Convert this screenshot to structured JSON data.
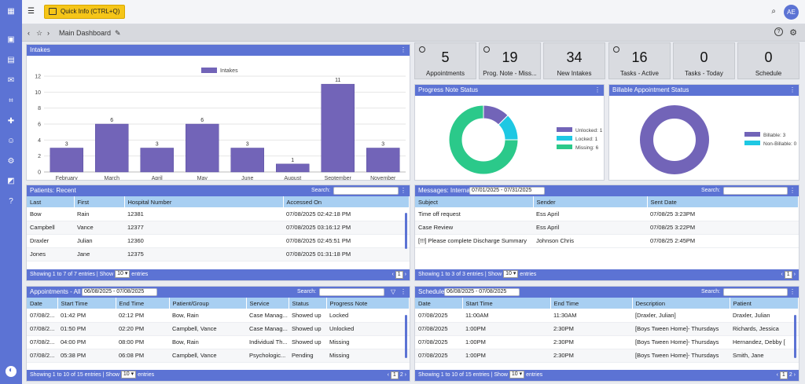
{
  "topbar": {
    "quick_info": "Quick Info (CTRL+Q)",
    "avatar": "AE"
  },
  "crumb": {
    "title": "Main Dashboard"
  },
  "intakes": {
    "title": "Intakes"
  },
  "chart_data": {
    "type": "bar",
    "title": "",
    "legend": "Intakes",
    "legend_position": "top-center",
    "categories": [
      "February",
      "March",
      "April",
      "May",
      "June",
      "August",
      "September",
      "November"
    ],
    "series": [
      {
        "name": "Intakes",
        "values": [
          3,
          6,
          3,
          6,
          3,
          1,
          11,
          3
        ]
      }
    ],
    "ylim": [
      0,
      12
    ],
    "yticks": [
      0,
      2,
      4,
      6,
      8,
      10,
      12
    ],
    "grid": true,
    "color": "#7264b8"
  },
  "stats": [
    {
      "num": "5",
      "label": "Appointments",
      "clock": true
    },
    {
      "num": "19",
      "label": "Prog. Note - Miss...",
      "clock": true
    },
    {
      "num": "34",
      "label": "New Intakes",
      "clock": false
    },
    {
      "num": "16",
      "label": "Tasks - Active",
      "clock": true
    },
    {
      "num": "0",
      "label": "Tasks - Today",
      "clock": false
    },
    {
      "num": "0",
      "label": "Schedule",
      "clock": false
    }
  ],
  "progress": {
    "title": "Progress Note Status",
    "slices": [
      {
        "label": "Unlocked: 1",
        "value": 1,
        "color": "#7264b8"
      },
      {
        "label": "Locked: 1",
        "value": 1,
        "color": "#1ec8e3"
      },
      {
        "label": "Missing: 6",
        "value": 6,
        "color": "#2bc98a"
      }
    ]
  },
  "billable": {
    "title": "Billable Appointment Status",
    "slices": [
      {
        "label": "Billable: 3",
        "value": 3,
        "color": "#7264b8"
      },
      {
        "label": "Non-Billable: 0",
        "value": 0,
        "color": "#1ec8e3"
      }
    ]
  },
  "patients": {
    "title": "Patients: Recent",
    "search_label": "Search:",
    "headers": [
      "Last",
      "First",
      "Hospital Number",
      "Accessed On"
    ],
    "rows": [
      [
        "Bow",
        "Rain",
        "12381",
        "07/08/2025 02:42:18 PM"
      ],
      [
        "Campbell",
        "Vance",
        "12377",
        "07/08/2025 03:16:12 PM"
      ],
      [
        "Draxler",
        "Julian",
        "12360",
        "07/08/2025 02:45:51 PM"
      ],
      [
        "Jones",
        "Jane",
        "12375",
        "07/08/2025 01:31:18 PM"
      ]
    ],
    "footer": "Showing 1 to 7 of 7 entries",
    "show": "Show",
    "entries_value": "10",
    "entries": "entries",
    "page": "1"
  },
  "messages": {
    "title": "Messages: Internal",
    "date_range": "07/01/2025 - 07/31/2025",
    "search_label": "Search:",
    "headers": [
      "Subject",
      "Sender",
      "Sent Date"
    ],
    "rows": [
      [
        "Time off request",
        "Ess April",
        "07/08/25 3:23PM"
      ],
      [
        "Case Review",
        "Ess April",
        "07/08/25 3:22PM"
      ],
      [
        "[!!!] Please complete Discharge Summary",
        "Johnson Chris",
        "07/08/25 2:45PM"
      ]
    ],
    "footer": "Showing 1 to 3 of 3 entries",
    "show": "Show",
    "entries_value": "10",
    "entries": "entries",
    "page": "1"
  },
  "appointments": {
    "title": "Appointments - All",
    "date_range": "06/08/2025 - 07/08/2025",
    "search_label": "Search:",
    "headers": [
      "Date",
      "Start Time",
      "End Time",
      "Patient/Group",
      "Service",
      "Status",
      "Progress Note"
    ],
    "rows": [
      [
        "07/08/2...",
        "01:42 PM",
        "02:12 PM",
        "Bow, Rain",
        "Case Manag...",
        "Showed up",
        "Locked"
      ],
      [
        "07/08/2...",
        "01:50 PM",
        "02:20 PM",
        "Campbell, Vance",
        "Case Manag...",
        "Showed up",
        "Unlocked"
      ],
      [
        "07/08/2...",
        "04:00 PM",
        "08:00 PM",
        "Bow, Rain",
        "Individual Th...",
        "Showed up",
        "Missing"
      ],
      [
        "07/08/2...",
        "05:38 PM",
        "06:08 PM",
        "Campbell, Vance",
        "Psychologic...",
        "Pending",
        "Missing"
      ]
    ],
    "footer": "Showing 1 to 10 of 15 entries",
    "show": "Show",
    "entries_value": "10",
    "entries": "entries",
    "page": "1",
    "page2": "2"
  },
  "schedule": {
    "title": "Schedule",
    "date_range": "06/08/2025 - 07/08/2025",
    "search_label": "Search:",
    "headers": [
      "Date",
      "Start Time",
      "End Time",
      "Description",
      "Patient"
    ],
    "rows": [
      [
        "07/08/2025",
        "11:00AM",
        "11:30AM",
        "[Draxler, Julian]",
        "Draxler, Julian"
      ],
      [
        "07/08/2025",
        "1:00PM",
        "2:30PM",
        "[Boys Tween Home]- Thursdays",
        "Richards, Jessica"
      ],
      [
        "07/08/2025",
        "1:00PM",
        "2:30PM",
        "[Boys Tween Home]- Thursdays",
        "Hernandez, Debby ["
      ],
      [
        "07/08/2025",
        "1:00PM",
        "2:30PM",
        "[Boys Tween Home]- Thursdays",
        "Smith, Jane"
      ]
    ],
    "footer": "Showing 1 to 10 of 15 entries",
    "show": "Show",
    "entries_value": "10",
    "entries": "entries",
    "page": "1",
    "page2": "2"
  }
}
